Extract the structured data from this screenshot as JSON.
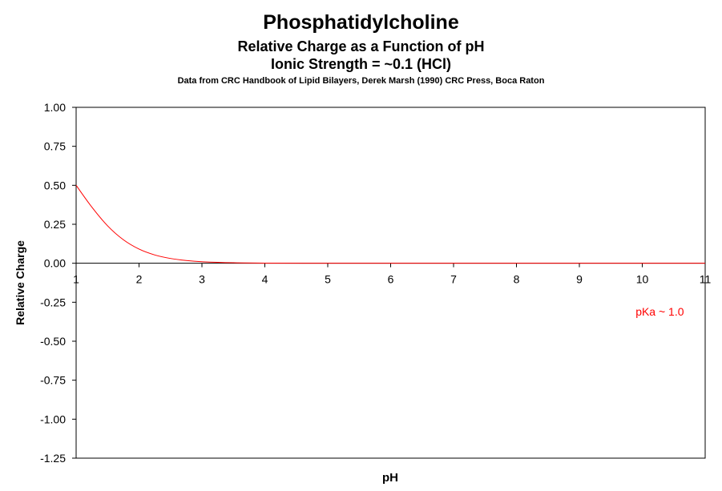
{
  "chart_data": {
    "type": "line",
    "title": "Phosphatidylcholine",
    "subtitles": [
      "Relative Charge as a Function of pH",
      "Ionic Strength = ~0.1 (HCl)",
      "Data from CRC  Handbook of Lipid Bilayers, Derek Marsh (1990)  CRC Press,  Boca Raton"
    ],
    "xlabel": "pH",
    "ylabel": "Relative Charge",
    "xlim": [
      1,
      11
    ],
    "ylim": [
      -1.25,
      1.0
    ],
    "xticks": [
      "1",
      "2",
      "3",
      "4",
      "5",
      "6",
      "7",
      "8",
      "9",
      "10",
      "11"
    ],
    "yticks": [
      "1.00",
      "0.75",
      "0.50",
      "0.25",
      "0.00",
      "-0.25",
      "-0.50",
      "-0.75",
      "-1.00",
      "-1.25"
    ],
    "grid": false,
    "annotation": {
      "text": "pKa ~ 1.0",
      "x": 10.2,
      "y": -0.31,
      "color": "#ff0000"
    },
    "series": [
      {
        "color": "#ff0000",
        "x": [
          1,
          1.25,
          1.5,
          1.75,
          2,
          2.25,
          2.5,
          2.75,
          3,
          3.5,
          4,
          5,
          6,
          7,
          8,
          9,
          10,
          11
        ],
        "y": [
          0.5,
          0.36,
          0.24,
          0.151,
          0.0909,
          0.0532,
          0.0307,
          0.0175,
          0.0099,
          0.0032,
          0.001,
          0.0001,
          0,
          0,
          0,
          0,
          0,
          0
        ]
      }
    ]
  }
}
